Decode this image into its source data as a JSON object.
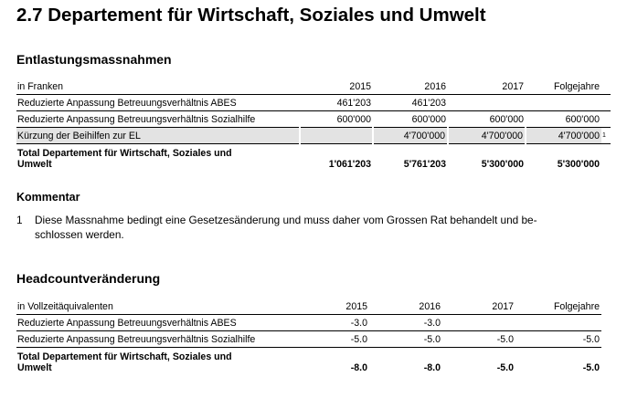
{
  "title": "2.7 Departement für Wirtschaft, Soziales und Umwelt",
  "relief": {
    "heading": "Entlastungsmassnahmen",
    "unit_label": "in Franken",
    "columns": [
      "2015",
      "2016",
      "2017",
      "Folgejahre"
    ],
    "rows": [
      {
        "label": "Reduzierte Anpassung Betreuungsverhältnis ABES",
        "values": [
          "461'203",
          "461'203",
          "",
          ""
        ],
        "note": ""
      },
      {
        "label": "Reduzierte Anpassung Betreuungsverhältnis Sozialhilfe",
        "values": [
          "600'000",
          "600'000",
          "600'000",
          "600'000"
        ],
        "note": ""
      },
      {
        "label": "Kürzung der Beihilfen zur EL",
        "values": [
          "",
          "4'700'000",
          "4'700'000",
          "4'700'000"
        ],
        "note": "1"
      }
    ],
    "total": {
      "label_line1": "Total Departement für Wirtschaft, Soziales und",
      "label_line2": "Umwelt",
      "values": [
        "1'061'203",
        "5'761'203",
        "5'300'000",
        "5'300'000"
      ]
    }
  },
  "comment": {
    "heading": "Kommentar",
    "items": [
      {
        "number": "1",
        "text": "Diese Massnahme bedingt eine Gesetzesänderung und muss daher vom Grossen Rat behandelt und be-",
        "text2": "schlossen werden."
      }
    ]
  },
  "headcount": {
    "heading": "Headcountveränderung",
    "unit_label": "in Vollzeitäquivalenten",
    "columns": [
      "2015",
      "2016",
      "2017",
      "Folgejahre"
    ],
    "rows": [
      {
        "label": "Reduzierte Anpassung Betreuungsverhältnis ABES",
        "values": [
          "-3.0",
          "-3.0",
          "",
          ""
        ]
      },
      {
        "label": "Reduzierte Anpassung Betreuungsverhältnis Sozialhilfe",
        "values": [
          "-5.0",
          "-5.0",
          "-5.0",
          "-5.0"
        ]
      }
    ],
    "total": {
      "label_line1": "Total Departement für Wirtschaft, Soziales und",
      "label_line2": "Umwelt",
      "values": [
        "-8.0",
        "-8.0",
        "-5.0",
        "-5.0"
      ]
    }
  }
}
